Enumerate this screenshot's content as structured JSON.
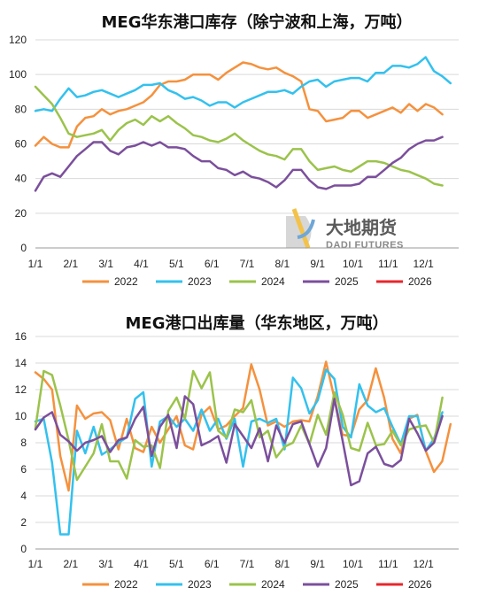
{
  "watermark": {
    "cn": "大地期货",
    "en": "DADI FUTURES"
  },
  "colors": {
    "2022": "#f5913d",
    "2023": "#33c1ee",
    "2024": "#9bc34b",
    "2025": "#7b4f9c",
    "2026": "#e8262c"
  },
  "chart_data": [
    {
      "type": "line",
      "title": "MEG华东港口库存（除宁波和上海，万吨）",
      "xlabel": "",
      "ylabel": "",
      "ylim": [
        0,
        120
      ],
      "yticks": [
        "0",
        "20",
        "40",
        "60",
        "80",
        "100",
        "120"
      ],
      "xticks": [
        "1/1",
        "2/1",
        "3/1",
        "4/1",
        "5/1",
        "6/1",
        "7/1",
        "8/1",
        "9/1",
        "10/1",
        "11/1",
        "12/1"
      ],
      "legend": [
        "2022",
        "2023",
        "2024",
        "2025",
        "2026"
      ],
      "series": [
        {
          "name": "2022",
          "color": "#f5913d",
          "values": [
            59,
            64,
            60,
            58,
            58,
            70,
            75,
            76,
            80,
            77,
            79,
            80,
            82,
            84,
            88,
            94,
            96,
            96,
            97,
            100,
            100,
            100,
            97,
            101,
            104,
            107,
            106,
            104,
            103,
            104,
            101,
            99,
            96,
            80,
            79,
            73,
            74,
            75,
            79,
            79,
            75,
            77,
            79,
            81,
            78,
            83,
            79,
            83,
            81,
            77
          ]
        },
        {
          "name": "2023",
          "color": "#33c1ee",
          "values": [
            79,
            80,
            79,
            86,
            92,
            87,
            88,
            90,
            91,
            89,
            87,
            89,
            91,
            94,
            94,
            95,
            91,
            89,
            86,
            87,
            85,
            82,
            84,
            84,
            81,
            84,
            86,
            88,
            90,
            90,
            91,
            89,
            93,
            96,
            97,
            93,
            96,
            97,
            98,
            98,
            96,
            101,
            101,
            105,
            105,
            104,
            106,
            110,
            102,
            99,
            95
          ]
        },
        {
          "name": "2024",
          "color": "#9bc34b",
          "values": [
            93,
            88,
            83,
            75,
            66,
            64,
            65,
            66,
            68,
            62,
            68,
            72,
            74,
            71,
            76,
            73,
            76,
            72,
            69,
            65,
            64,
            62,
            61,
            63,
            66,
            62,
            59,
            56,
            54,
            53,
            51,
            57,
            57,
            50,
            45,
            46,
            47,
            45,
            44,
            47,
            50,
            50,
            49,
            47,
            45,
            44,
            42,
            40,
            37,
            36
          ]
        },
        {
          "name": "2025",
          "color": "#7b4f9c",
          "values": [
            33,
            41,
            43,
            41,
            47,
            53,
            57,
            61,
            61,
            56,
            54,
            58,
            59,
            61,
            59,
            61,
            58,
            58,
            57,
            53,
            50,
            50,
            46,
            45,
            42,
            44,
            41,
            40,
            38,
            35,
            39,
            45,
            45,
            39,
            35,
            34,
            36,
            36,
            36,
            37,
            41,
            41,
            45,
            49,
            52,
            57,
            60,
            62,
            62,
            64
          ]
        },
        {
          "name": "2026",
          "color": "#e8262c",
          "values": []
        }
      ]
    },
    {
      "type": "line",
      "title": "MEG港口出库量（华东地区，万吨）",
      "xlabel": "",
      "ylabel": "",
      "ylim": [
        0,
        16
      ],
      "yticks": [
        "0",
        "2",
        "4",
        "6",
        "8",
        "10",
        "12",
        "14",
        "16"
      ],
      "xticks": [
        "1/1",
        "2/1",
        "3/1",
        "4/1",
        "5/1",
        "6/1",
        "7/1",
        "8/1",
        "9/1",
        "10/1",
        "11/1",
        "12/1"
      ],
      "legend": [
        "2022",
        "2023",
        "2024",
        "2025",
        "2026"
      ],
      "series": [
        {
          "name": "2022",
          "color": "#f5913d",
          "values": [
            13.3,
            12.8,
            12.0,
            7.0,
            4.4,
            10.8,
            9.8,
            10.2,
            10.3,
            9.7,
            7.5,
            9.8,
            7.6,
            7.3,
            9.2,
            8.0,
            9.0,
            10.0,
            7.8,
            7.5,
            10.1,
            10.7,
            9.0,
            9.3,
            10.0,
            10.6,
            13.9,
            12.0,
            9.3,
            9.6,
            9.2,
            9.6,
            9.7,
            9.6,
            11.5,
            14.1,
            11.4,
            8.6,
            8.5,
            10.5,
            11.2,
            13.6,
            11.4,
            8.3,
            7.2,
            9.8,
            10.1,
            7.4,
            5.8,
            6.6,
            9.4
          ]
        },
        {
          "name": "2023",
          "color": "#33c1ee",
          "values": [
            9.6,
            9.8,
            6.5,
            1.1,
            1.1,
            8.9,
            7.2,
            9.2,
            7.1,
            7.5,
            8.0,
            8.4,
            11.3,
            11.8,
            6.2,
            9.6,
            10.0,
            9.2,
            9.8,
            8.9,
            10.5,
            8.9,
            9.8,
            8.3,
            9.8,
            6.2,
            9.6,
            9.8,
            9.5,
            9.8,
            7.5,
            12.9,
            12.1,
            10.2,
            11.2,
            13.5,
            12.8,
            9.2,
            8.4,
            12.4,
            10.8,
            10.3,
            10.6,
            9.2,
            7.9,
            10.0,
            10.0,
            7.4,
            8.3,
            10.3
          ]
        },
        {
          "name": "2024",
          "color": "#9bc34b",
          "values": [
            9.1,
            13.4,
            13.1,
            10.8,
            8.2,
            5.2,
            6.2,
            7.2,
            9.4,
            6.6,
            6.6,
            5.3,
            8.2,
            7.7,
            7.8,
            6.1,
            10.4,
            11.4,
            9.8,
            13.4,
            12.1,
            13.3,
            8.9,
            8.4,
            10.5,
            10.3,
            11.2,
            8.4,
            8.9,
            6.9,
            7.7,
            8.0,
            9.3,
            7.9,
            10.1,
            8.6,
            11.8,
            10.1,
            7.6,
            7.4,
            9.5,
            7.8,
            7.9,
            8.9,
            7.8,
            9.0,
            9.2,
            9.3,
            8.0,
            11.4
          ]
        },
        {
          "name": "2025",
          "color": "#7b4f9c",
          "values": [
            9.0,
            9.9,
            10.3,
            8.6,
            8.1,
            7.4,
            8.0,
            8.2,
            8.5,
            7.3,
            8.2,
            8.4,
            9.8,
            10.7,
            7.0,
            9.2,
            10.1,
            7.6,
            11.5,
            10.9,
            7.8,
            8.1,
            8.5,
            6.5,
            9.4,
            8.5,
            7.6,
            9.1,
            6.6,
            9.3,
            8.0,
            9.4,
            9.6,
            7.9,
            6.2,
            7.6,
            11.3,
            8.1,
            4.8,
            5.1,
            7.2,
            7.7,
            6.4,
            6.2,
            6.7,
            9.8,
            8.7,
            7.4,
            8.0,
            10.0
          ]
        },
        {
          "name": "2026",
          "color": "#e8262c",
          "values": []
        }
      ]
    }
  ]
}
